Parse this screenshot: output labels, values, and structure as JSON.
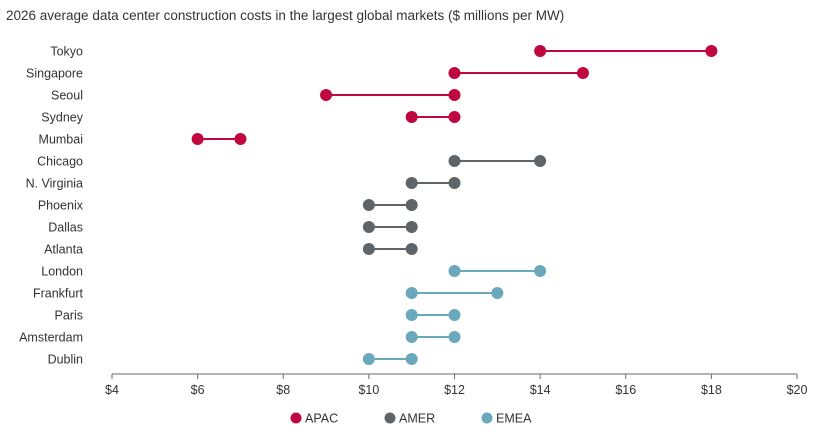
{
  "chart_data": {
    "type": "dumbbell",
    "title": "2026 average data center construction costs in the largest global markets ($ millions per MW)",
    "xlabel": "",
    "ylabel": "",
    "xlim": [
      4,
      20
    ],
    "x_ticks": [
      4,
      6,
      8,
      10,
      12,
      14,
      16,
      18,
      20
    ],
    "x_tick_labels": [
      "$4",
      "$6",
      "$8",
      "$10",
      "$12",
      "$14",
      "$16",
      "$18",
      "$20"
    ],
    "grid": false,
    "legend_position": "bottom-center",
    "series": [
      {
        "name": "APAC",
        "color": "#c0073f"
      },
      {
        "name": "AMER",
        "color": "#5f6468"
      },
      {
        "name": "EMEA",
        "color": "#6ba8bb"
      }
    ],
    "markets": [
      {
        "name": "Tokyo",
        "series": "APAC",
        "low": 14,
        "high": 18
      },
      {
        "name": "Singapore",
        "series": "APAC",
        "low": 12,
        "high": 15
      },
      {
        "name": "Seoul",
        "series": "APAC",
        "low": 9,
        "high": 12
      },
      {
        "name": "Sydney",
        "series": "APAC",
        "low": 11,
        "high": 12
      },
      {
        "name": "Mumbai",
        "series": "APAC",
        "low": 6,
        "high": 7
      },
      {
        "name": "Chicago",
        "series": "AMER",
        "low": 12,
        "high": 14
      },
      {
        "name": "N. Virginia",
        "series": "AMER",
        "low": 11,
        "high": 12
      },
      {
        "name": "Phoenix",
        "series": "AMER",
        "low": 10,
        "high": 11
      },
      {
        "name": "Dallas",
        "series": "AMER",
        "low": 10,
        "high": 11
      },
      {
        "name": "Atlanta",
        "series": "AMER",
        "low": 10,
        "high": 11
      },
      {
        "name": "London",
        "series": "EMEA",
        "low": 12,
        "high": 14
      },
      {
        "name": "Frankfurt",
        "series": "EMEA",
        "low": 11,
        "high": 13
      },
      {
        "name": "Paris",
        "series": "EMEA",
        "low": 11,
        "high": 12
      },
      {
        "name": "Amsterdam",
        "series": "EMEA",
        "low": 11,
        "high": 12
      },
      {
        "name": "Dublin",
        "series": "EMEA",
        "low": 10,
        "high": 11
      }
    ]
  }
}
